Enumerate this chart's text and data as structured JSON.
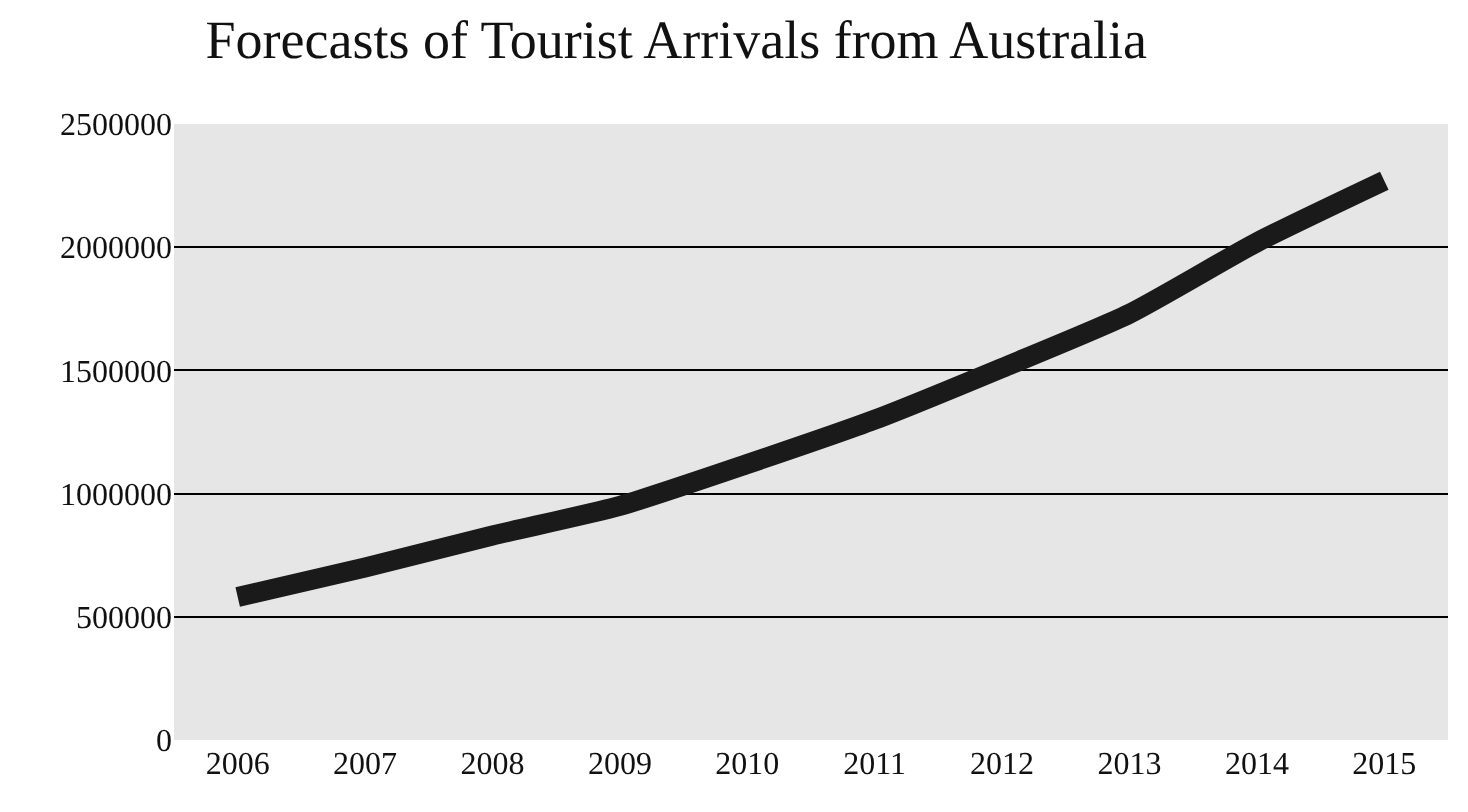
{
  "chart_data": {
    "type": "line",
    "title": "Forecasts of Tourist Arrivals from Australia",
    "categories": [
      "2006",
      "2007",
      "2008",
      "2009",
      "2010",
      "2011",
      "2012",
      "2013",
      "2014",
      "2015"
    ],
    "series": [
      {
        "color": "#1a1a1a",
        "values": [
          580000,
          700000,
          830000,
          950000,
          1120000,
          1300000,
          1510000,
          1730000,
          2020000,
          2270000
        ]
      }
    ],
    "ylim": [
      0,
      2500000
    ],
    "yticks": [
      0,
      500000,
      1000000,
      1500000,
      2000000,
      2500000
    ],
    "grid": "y",
    "marker": "none",
    "line_style": "solid"
  }
}
